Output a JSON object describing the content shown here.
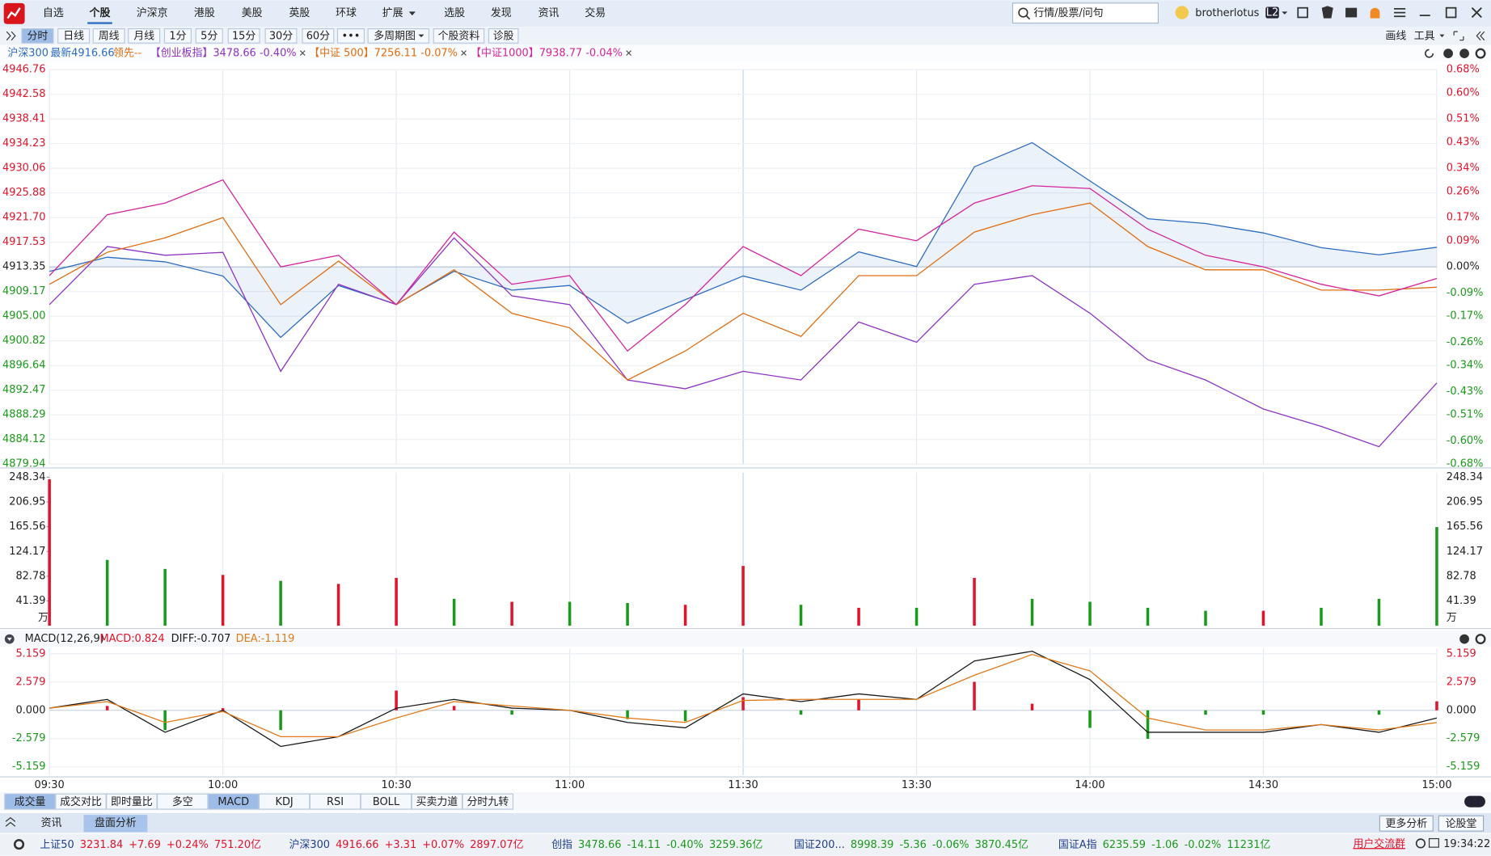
{
  "app": {
    "menu": [
      "自选",
      "个股",
      "沪深京",
      "港股",
      "美股",
      "英股",
      "环球",
      "扩展",
      "选股",
      "发现",
      "资讯",
      "交易"
    ],
    "search_placeholder": "行情/股票/问句",
    "user": "brotherlotus",
    "level": "L2"
  },
  "toolbar": {
    "periods": [
      "分时",
      "日线",
      "周线",
      "月线",
      "1分",
      "5分",
      "15分",
      "30分",
      "60分",
      "•••",
      "多周期图",
      "个股资料",
      "诊股"
    ],
    "tools": [
      "画线",
      "工具"
    ]
  },
  "quote": {
    "name": "沪深300",
    "latest": "最新4916.66",
    "lead": "领先--",
    "compare": [
      "【创业板指】3478.66 -0.40%",
      "【中证 500】7256.11 -0.07%",
      "【中证1000】7938.77 -0.04%"
    ]
  },
  "chart_data": [
    {
      "type": "line",
      "x": [
        0,
        10,
        20,
        30,
        40,
        50,
        60,
        70,
        80,
        90,
        100,
        110,
        120,
        130,
        140,
        150,
        160,
        170,
        180,
        190,
        200,
        210,
        220,
        230,
        240
      ],
      "xlim": [
        0,
        240
      ],
      "ylim": [
        4879.94,
        4946.76
      ],
      "yticks": [
        4946.76,
        4942.58,
        4938.41,
        4934.23,
        4930.06,
        4925.88,
        {
          "value": 4921.7,
          "label": "4921.70"
        },
        4917.53,
        4913.35,
        4909.17,
        {
          "value": 4905,
          "label": "4905.00"
        },
        4900.82,
        4896.64,
        4892.47,
        4888.29,
        4884.12,
        4879.94
      ],
      "y2lim": [
        -0.68,
        0.68
      ],
      "y2ticks": [
        {
          "value": 0.68,
          "label": "0.68%"
        },
        {
          "value": 0.6,
          "label": "0.60%"
        },
        {
          "value": 0.51,
          "label": "0.51%"
        },
        {
          "value": 0.43,
          "label": "0.43%"
        },
        {
          "value": 0.34,
          "label": "0.34%"
        },
        {
          "value": 0.26,
          "label": "0.26%"
        },
        {
          "value": 0.17,
          "label": "0.17%"
        },
        {
          "value": 0.09,
          "label": "0.09%"
        },
        {
          "value": 0,
          "label": "0.00%"
        },
        {
          "value": -0.09,
          "label": "-0.09%"
        },
        {
          "value": -0.17,
          "label": "-0.17%"
        },
        {
          "value": -0.26,
          "label": "-0.26%"
        },
        {
          "value": -0.34,
          "label": "-0.34%"
        },
        {
          "value": -0.43,
          "label": "-0.43%"
        },
        {
          "value": -0.51,
          "label": "-0.51%"
        },
        {
          "value": -0.6,
          "label": "-0.60%"
        },
        {
          "value": -0.68,
          "label": "-0.68%"
        }
      ],
      "grid": true,
      "up_color": "#e0142b",
      "down_color": "#1a9a1a",
      "series": [
        {
          "color": "#2d6cc0",
          "values": [
            4912.6,
            4915,
            4914.2,
            4911.8,
            4901.4,
            4910.2,
            4907,
            4912.6,
            4909.4,
            4910.2,
            4903.8,
            4907.8,
            4911.8,
            4909.4,
            4915.9,
            4913.4,
            4930.3,
            4934.4,
            4927.9,
            4921.5,
            4920.7,
            4919.1,
            4916.6,
            4915.4,
            4916.66
          ]
        },
        {
          "color": "#8e34c4",
          "axis": "y2",
          "values": [
            -0.13,
            0.07,
            0.04,
            0.05,
            -0.36,
            -0.06,
            -0.13,
            0.1,
            -0.1,
            -0.13,
            -0.39,
            -0.42,
            -0.36,
            -0.39,
            -0.19,
            -0.26,
            -0.06,
            -0.03,
            -0.16,
            -0.32,
            -0.39,
            -0.49,
            -0.55,
            -0.62,
            -0.4
          ]
        },
        {
          "color": "#e06c10",
          "axis": "y2",
          "values": [
            -0.06,
            0.05,
            0.1,
            0.17,
            -0.13,
            0.02,
            -0.13,
            -0.01,
            -0.16,
            -0.21,
            -0.39,
            -0.29,
            -0.16,
            -0.24,
            -0.03,
            -0.03,
            0.12,
            0.18,
            0.22,
            0.07,
            -0.01,
            -0.01,
            -0.08,
            -0.08,
            -0.07
          ]
        },
        {
          "color": "#d4249d",
          "axis": "y2",
          "values": [
            -0.03,
            0.18,
            0.22,
            0.3,
            0,
            0.04,
            -0.13,
            0.12,
            -0.06,
            -0.03,
            -0.29,
            -0.13,
            0.07,
            -0.03,
            0.13,
            0.09,
            0.22,
            0.28,
            0.27,
            0.13,
            0.04,
            0,
            -0.06,
            -0.1,
            -0.04
          ]
        }
      ]
    },
    {
      "type": "bar",
      "unit": "万",
      "x": [
        0,
        10,
        20,
        30,
        40,
        50,
        60,
        70,
        80,
        90,
        100,
        110,
        120,
        130,
        140,
        150,
        160,
        170,
        180,
        190,
        200,
        210,
        220,
        230,
        240
      ],
      "xlim": [
        0,
        240
      ],
      "ylim": [
        0,
        256
      ],
      "yticks": [
        41.39,
        82.78,
        124.17,
        165.56,
        206.95,
        248.34
      ],
      "values": [
        245,
        110,
        95,
        85,
        75,
        70,
        80,
        45,
        40,
        40,
        38,
        35,
        100,
        35,
        30,
        30,
        80,
        45,
        40,
        30,
        25,
        25,
        30,
        45,
        165
      ],
      "colors": [
        "#e0142b",
        "#1a9a1a",
        "#1a9a1a",
        "#e0142b",
        "#1a9a1a",
        "#e0142b",
        "#e0142b",
        "#1a9a1a",
        "#e0142b",
        "#1a9a1a",
        "#1a9a1a",
        "#e0142b",
        "#e0142b",
        "#1a9a1a",
        "#e0142b",
        "#1a9a1a",
        "#e0142b",
        "#1a9a1a",
        "#1a9a1a",
        "#1a9a1a",
        "#1a9a1a",
        "#e0142b",
        "#1a9a1a",
        "#1a9a1a",
        "#1a9a1a"
      ]
    },
    {
      "type": "macd",
      "title": "MACD(12,26,9)",
      "x": [
        0,
        10,
        20,
        30,
        40,
        50,
        60,
        70,
        80,
        90,
        100,
        110,
        120,
        130,
        140,
        150,
        160,
        170,
        180,
        190,
        200,
        210,
        220,
        230,
        240
      ],
      "xlim": [
        0,
        240
      ],
      "xticks": [
        {
          "value": 0,
          "label": "09:30"
        },
        {
          "value": 30,
          "label": "10:00"
        },
        {
          "value": 60,
          "label": "10:30"
        },
        {
          "value": 90,
          "label": "11:00"
        },
        {
          "value": 120,
          "label": "11:30"
        },
        {
          "value": 150,
          "label": "13:30"
        },
        {
          "value": 180,
          "label": "14:00"
        },
        {
          "value": 210,
          "label": "14:30"
        },
        {
          "value": 240,
          "label": "15:00"
        }
      ],
      "ylim": [
        -5.9,
        5.64
      ],
      "yticks": [
        5.159,
        2.579,
        {
          "value": 0,
          "label": "0.000"
        },
        -2.579,
        -5.159
      ],
      "up_color": "#e0142b",
      "down_color": "#1a9a1a",
      "series": [
        {
          "name": "MACD:0.824",
          "type": "bar",
          "color": "#e0142b",
          "values": [
            0,
            0.4,
            -1.8,
            0.2,
            -1.8,
            0,
            1.8,
            0.4,
            -0.4,
            0,
            -0.8,
            -1,
            1.2,
            -0.4,
            1,
            0,
            2.6,
            0.6,
            -1.6,
            -2.6,
            -0.4,
            -0.4,
            0,
            -0.4,
            0.824
          ]
        },
        {
          "name": "DIFF:-0.707",
          "type": "line",
          "color": "#1a1a1a",
          "values": [
            0.2,
            1,
            -2,
            0,
            -3.3,
            -2.4,
            0.2,
            1,
            0.2,
            0,
            -1.1,
            -1.6,
            1.5,
            0.8,
            1.5,
            1,
            4.5,
            5.4,
            2.8,
            -2,
            -2,
            -2,
            -1.3,
            -2,
            -0.707
          ]
        },
        {
          "name": "DEA:-1.119",
          "type": "line",
          "color": "#e07b1a",
          "values": [
            0.2,
            0.8,
            -1.1,
            -0.1,
            -2.4,
            -2.4,
            -0.7,
            0.8,
            0.4,
            0,
            -0.7,
            -1.1,
            0.9,
            1,
            1,
            1,
            3.2,
            5.1,
            3.6,
            -0.7,
            -1.8,
            -1.8,
            -1.3,
            -1.8,
            -1.119
          ]
        }
      ]
    }
  ],
  "indicator_tabs": [
    "成交量",
    "成交对比",
    "即时量比",
    "多空",
    "MACD",
    "KDJ",
    "RSI",
    "BOLL",
    "买卖力道",
    "分时九转"
  ],
  "bottom_tabs": [
    "资讯",
    "盘面分析"
  ],
  "bottom_buttons": [
    "更多分析",
    "论股堂"
  ],
  "ticker": [
    {
      "name": "上证50",
      "price": "3231.84",
      "change": "+7.69",
      "pct": "+0.24%",
      "amount": "751.20亿"
    },
    {
      "name": "沪深300",
      "price": "4916.66",
      "change": "+3.31",
      "pct": "+0.07%",
      "amount": "2897.07亿"
    },
    {
      "name": "创指",
      "price": "3478.66",
      "change": "-14.11",
      "pct": "-0.40%",
      "amount": "3259.36亿"
    },
    {
      "name": "国证200...",
      "price": "8998.39",
      "change": "-5.36",
      "pct": "-0.06%",
      "amount": "3870.45亿"
    },
    {
      "name": "国证A指",
      "price": "6235.59",
      "change": "-1.06",
      "pct": "-0.02%",
      "amount": "11231亿"
    }
  ],
  "ticker_link": "用户交流群",
  "clock": "19:34:22"
}
